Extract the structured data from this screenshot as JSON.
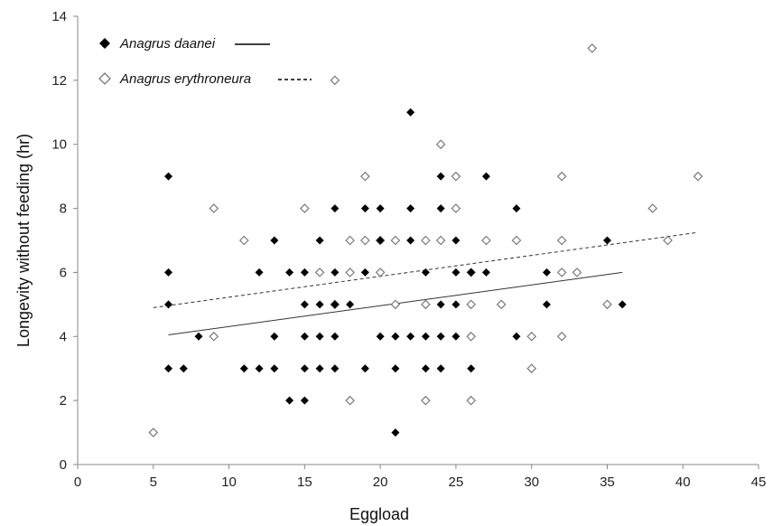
{
  "chart_data": {
    "type": "scatter",
    "title": "",
    "xlabel": "Eggload",
    "ylabel": "Longevity without feeding (hr)",
    "xlim": [
      0,
      45
    ],
    "ylim": [
      0,
      14
    ],
    "xticks": [
      0,
      5,
      10,
      15,
      20,
      25,
      30,
      35,
      40,
      45
    ],
    "yticks": [
      0,
      2,
      4,
      6,
      8,
      10,
      12,
      14
    ],
    "grid": false,
    "legend_position": "top-left",
    "series": [
      {
        "name": "Anagrus daanei",
        "marker": "filled-diamond",
        "color": "#000000",
        "trendline": {
          "style": "solid",
          "x": [
            6,
            36
          ],
          "y": [
            4.05,
            6.0
          ]
        },
        "points": [
          [
            6,
            9
          ],
          [
            6,
            6
          ],
          [
            6,
            5
          ],
          [
            6,
            3
          ],
          [
            7,
            3
          ],
          [
            8,
            4
          ],
          [
            11,
            3
          ],
          [
            12,
            6
          ],
          [
            12,
            3
          ],
          [
            13,
            7
          ],
          [
            13,
            4
          ],
          [
            13,
            3
          ],
          [
            14,
            6
          ],
          [
            14,
            2
          ],
          [
            15,
            6
          ],
          [
            15,
            5
          ],
          [
            15,
            4
          ],
          [
            15,
            3
          ],
          [
            15,
            2
          ],
          [
            16,
            7
          ],
          [
            16,
            5
          ],
          [
            16,
            4
          ],
          [
            16,
            3
          ],
          [
            17,
            8
          ],
          [
            17,
            6
          ],
          [
            17,
            5
          ],
          [
            17,
            4
          ],
          [
            17,
            3
          ],
          [
            18,
            5
          ],
          [
            19,
            8
          ],
          [
            19,
            6
          ],
          [
            19,
            3
          ],
          [
            20,
            8
          ],
          [
            20,
            7
          ],
          [
            20,
            4
          ],
          [
            21,
            4
          ],
          [
            21,
            3
          ],
          [
            21,
            1
          ],
          [
            22,
            11
          ],
          [
            22,
            8
          ],
          [
            22,
            7
          ],
          [
            22,
            4
          ],
          [
            23,
            6
          ],
          [
            23,
            4
          ],
          [
            23,
            3
          ],
          [
            24,
            9
          ],
          [
            24,
            8
          ],
          [
            24,
            5
          ],
          [
            24,
            4
          ],
          [
            24,
            3
          ],
          [
            25,
            7
          ],
          [
            25,
            6
          ],
          [
            25,
            5
          ],
          [
            25,
            4
          ],
          [
            26,
            6
          ],
          [
            26,
            3
          ],
          [
            27,
            9
          ],
          [
            27,
            6
          ],
          [
            29,
            8
          ],
          [
            29,
            4
          ],
          [
            31,
            6
          ],
          [
            31,
            5
          ],
          [
            35,
            7
          ],
          [
            36,
            5
          ]
        ]
      },
      {
        "name": "Anagrus erythroneura",
        "marker": "open-diamond",
        "color": "#777777",
        "trendline": {
          "style": "dashed",
          "x": [
            5,
            41
          ],
          "y": [
            4.9,
            7.25
          ]
        },
        "points": [
          [
            5,
            1
          ],
          [
            9,
            8
          ],
          [
            9,
            4
          ],
          [
            11,
            7
          ],
          [
            15,
            8
          ],
          [
            16,
            6
          ],
          [
            17,
            12
          ],
          [
            17,
            5
          ],
          [
            18,
            7
          ],
          [
            18,
            6
          ],
          [
            18,
            2
          ],
          [
            19,
            9
          ],
          [
            19,
            7
          ],
          [
            20,
            7
          ],
          [
            20,
            6
          ],
          [
            21,
            7
          ],
          [
            21,
            5
          ],
          [
            23,
            7
          ],
          [
            23,
            5
          ],
          [
            23,
            2
          ],
          [
            24,
            10
          ],
          [
            24,
            7
          ],
          [
            25,
            9
          ],
          [
            25,
            8
          ],
          [
            26,
            6
          ],
          [
            26,
            5
          ],
          [
            26,
            4
          ],
          [
            26,
            2
          ],
          [
            27,
            7
          ],
          [
            28,
            5
          ],
          [
            29,
            7
          ],
          [
            30,
            4
          ],
          [
            30,
            3
          ],
          [
            32,
            9
          ],
          [
            32,
            7
          ],
          [
            32,
            6
          ],
          [
            32,
            4
          ],
          [
            33,
            6
          ],
          [
            34,
            13
          ],
          [
            35,
            5
          ],
          [
            38,
            8
          ],
          [
            39,
            7
          ],
          [
            41,
            9
          ]
        ]
      }
    ]
  }
}
